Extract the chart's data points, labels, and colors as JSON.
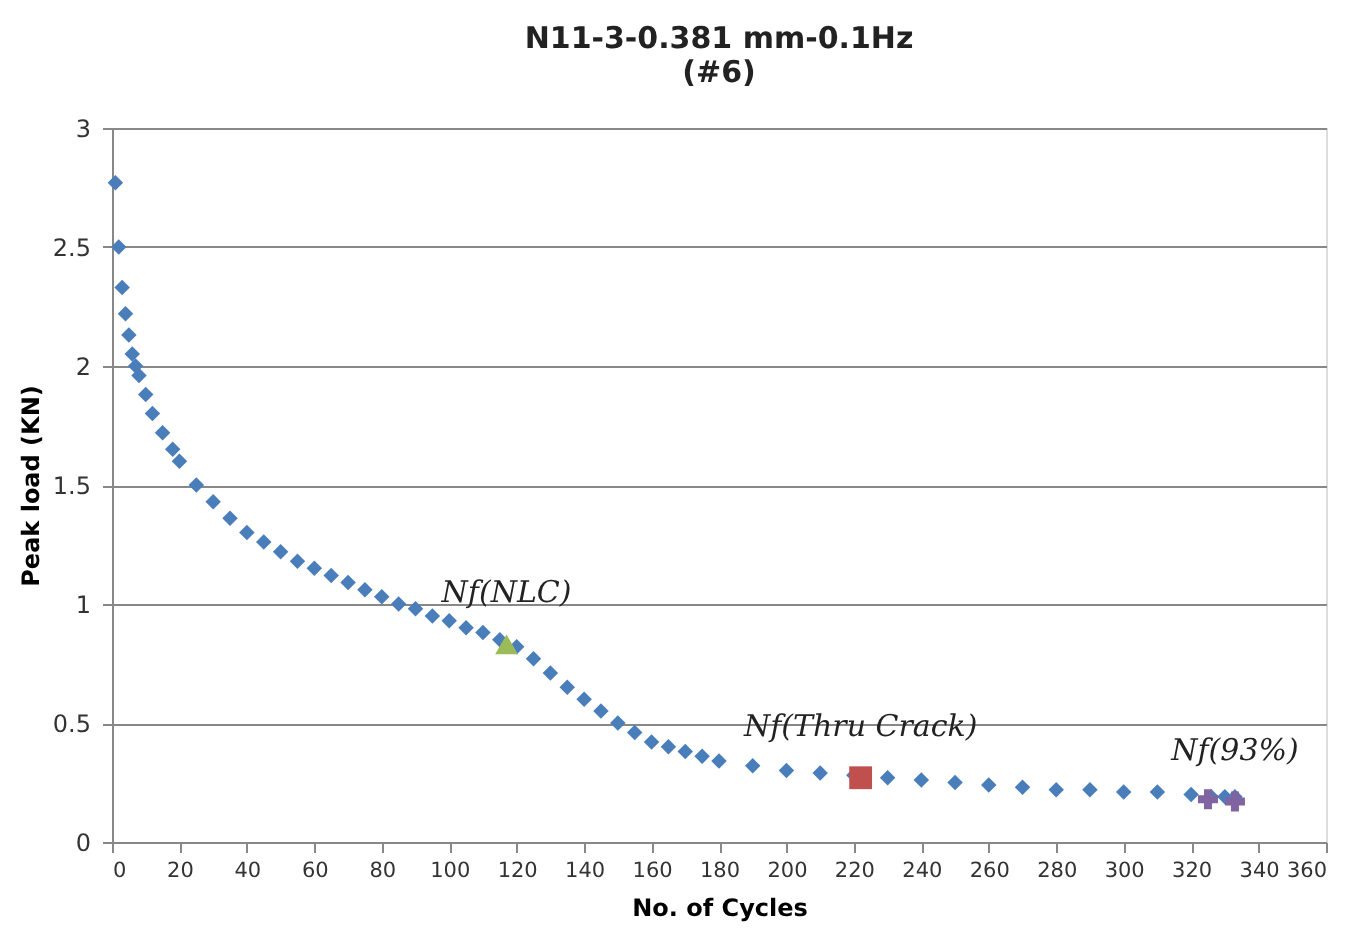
{
  "chart_data": {
    "type": "scatter",
    "title": "N11-3-0.381 mm-0.1Hz\n(#6)",
    "xlabel": "No. of Cycles",
    "ylabel": "Peak load (KN)",
    "xlim": [
      0,
      360
    ],
    "xticks": [
      0,
      20,
      40,
      60,
      80,
      100,
      120,
      140,
      160,
      180,
      200,
      220,
      240,
      260,
      280,
      300,
      320,
      340,
      360
    ],
    "ylim": [
      0,
      3
    ],
    "yticks": [
      0,
      0.5,
      1,
      1.5,
      2,
      2.5,
      3
    ],
    "grid": "y",
    "series": [
      {
        "color": "#4a7ebb",
        "marker": "diamond",
        "x": [
          1,
          2,
          3,
          4,
          5,
          6,
          7,
          8,
          10,
          12,
          15,
          18,
          20,
          25,
          30,
          35,
          40,
          45,
          50,
          55,
          60,
          65,
          70,
          75,
          80,
          85,
          90,
          95,
          100,
          105,
          110,
          115,
          120,
          125,
          130,
          135,
          140,
          145,
          150,
          155,
          160,
          165,
          170,
          175,
          180,
          190,
          200,
          210,
          220,
          230,
          240,
          250,
          260,
          270,
          280,
          290,
          300,
          310,
          320,
          326,
          330,
          333
        ],
        "values": [
          2.77,
          2.5,
          2.33,
          2.22,
          2.13,
          2.05,
          2.0,
          1.96,
          1.88,
          1.8,
          1.72,
          1.65,
          1.6,
          1.5,
          1.43,
          1.36,
          1.3,
          1.26,
          1.22,
          1.18,
          1.15,
          1.12,
          1.09,
          1.06,
          1.03,
          1.0,
          0.98,
          0.95,
          0.93,
          0.9,
          0.88,
          0.85,
          0.82,
          0.77,
          0.71,
          0.65,
          0.6,
          0.55,
          0.5,
          0.46,
          0.42,
          0.4,
          0.38,
          0.36,
          0.34,
          0.32,
          0.3,
          0.29,
          0.28,
          0.27,
          0.26,
          0.25,
          0.24,
          0.23,
          0.22,
          0.22,
          0.21,
          0.21,
          0.2,
          0.19,
          0.19,
          0.19
        ]
      },
      {
        "color": "#9bbb59",
        "marker": "triangle",
        "x": [
          117
        ],
        "values": [
          0.83
        ]
      },
      {
        "color": "#c0504d",
        "marker": "square",
        "x": [
          222
        ],
        "values": [
          0.27
        ]
      },
      {
        "color": "#8064a2",
        "marker": "cross",
        "x": [
          325,
          333
        ],
        "values": [
          0.18,
          0.17
        ]
      }
    ],
    "annotations": [
      "Nf(NLC)",
      "Nf(Thru Crack)",
      "Nf(93%)"
    ]
  }
}
